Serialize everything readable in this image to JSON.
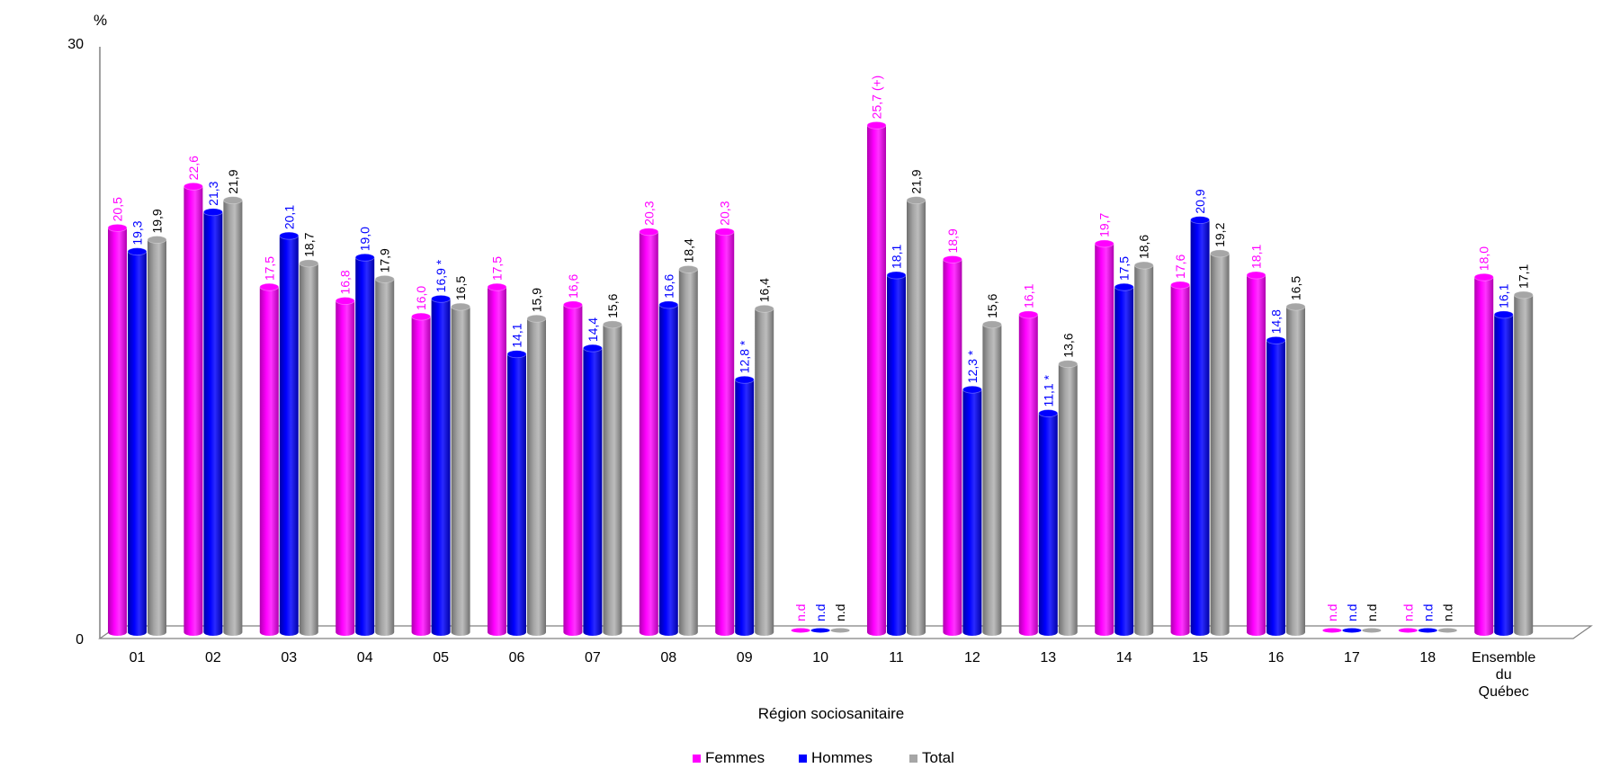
{
  "chart_data": {
    "type": "bar",
    "yunit": "%",
    "xlabel": "Région sociosanitaire",
    "ylim": [
      0,
      30
    ],
    "yticks": [
      0,
      30
    ],
    "legend_position": "bottom",
    "categories": [
      "01",
      "02",
      "03",
      "04",
      "05",
      "06",
      "07",
      "08",
      "09",
      "10",
      "11",
      "12",
      "13",
      "14",
      "15",
      "16",
      "17",
      "18",
      "Ensemble du Québec"
    ],
    "series": [
      {
        "name": "Femmes",
        "color": "#FF00FF",
        "values": [
          20.5,
          22.6,
          17.5,
          16.8,
          16.0,
          17.5,
          16.6,
          20.3,
          20.3,
          null,
          25.7,
          18.9,
          16.1,
          19.7,
          17.6,
          18.1,
          null,
          null,
          18.0
        ],
        "labels": [
          "20,5",
          "22,6",
          "17,5",
          "16,8",
          "16,0",
          "17,5",
          "16,6",
          "20,3",
          "20,3",
          "n.d",
          "25,7 (+)",
          "18,9",
          "16,1",
          "19,7",
          "17,6",
          "18,1",
          "n.d",
          "n.d",
          "18,0"
        ]
      },
      {
        "name": "Hommes",
        "color": "#0000FF",
        "values": [
          19.3,
          21.3,
          20.1,
          19.0,
          16.9,
          14.1,
          14.4,
          16.6,
          12.8,
          null,
          18.1,
          12.3,
          11.1,
          17.5,
          20.9,
          14.8,
          null,
          null,
          16.1
        ],
        "labels": [
          "19,3",
          "21,3",
          "20,1",
          "19,0",
          "16,9 *",
          "14,1",
          "14,4",
          "16,6",
          "12,8 *",
          "n.d",
          "18,1",
          "12,3 *",
          "11,1 *",
          "17,5",
          "20,9",
          "14,8",
          "n.d",
          "n.d",
          "16,1"
        ]
      },
      {
        "name": "Total",
        "color": "#A6A6A6",
        "values": [
          19.9,
          21.9,
          18.7,
          17.9,
          16.5,
          15.9,
          15.6,
          18.4,
          16.4,
          null,
          21.9,
          15.6,
          13.6,
          18.6,
          19.2,
          16.5,
          null,
          null,
          17.1
        ],
        "labels": [
          "19,9",
          "21,9",
          "18,7",
          "17,9",
          "16,5",
          "15,9",
          "15,6",
          "18,4",
          "16,4",
          "n.d",
          "21,9",
          "15,6",
          "13,6",
          "18,6",
          "19,2",
          "16,5",
          "n.d",
          "n.d",
          "17,1"
        ]
      }
    ]
  }
}
